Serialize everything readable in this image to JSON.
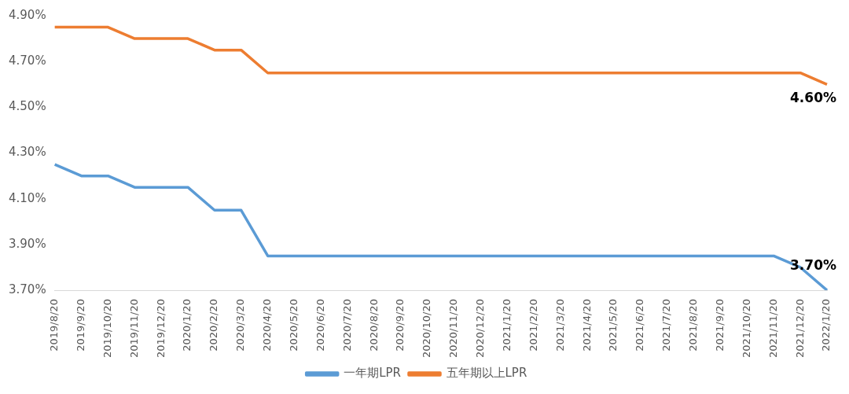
{
  "chart_data": {
    "type": "line",
    "categories": [
      "2019/8/20",
      "2019/9/20",
      "2019/10/20",
      "2019/11/20",
      "2019/12/20",
      "2020/1/20",
      "2020/2/20",
      "2020/3/20",
      "2020/4/20",
      "2020/5/20",
      "2020/6/20",
      "2020/7/20",
      "2020/8/20",
      "2020/9/20",
      "2020/10/20",
      "2020/11/20",
      "2020/12/20",
      "2021/1/20",
      "2021/2/20",
      "2021/3/20",
      "2021/4/20",
      "2021/5/20",
      "2021/6/20",
      "2021/7/20",
      "2021/8/20",
      "2021/9/20",
      "2021/10/20",
      "2021/11/20",
      "2021/12/20",
      "2022/1/20"
    ],
    "series": [
      {
        "name": "一年期LPR",
        "color": "#5b9bd5",
        "values": [
          4.25,
          4.2,
          4.2,
          4.15,
          4.15,
          4.15,
          4.05,
          4.05,
          3.85,
          3.85,
          3.85,
          3.85,
          3.85,
          3.85,
          3.85,
          3.85,
          3.85,
          3.85,
          3.85,
          3.85,
          3.85,
          3.85,
          3.85,
          3.85,
          3.85,
          3.85,
          3.85,
          3.85,
          3.8,
          3.7
        ],
        "value_labels": [
          null,
          null,
          null,
          null,
          null,
          null,
          null,
          null,
          null,
          null,
          null,
          null,
          null,
          null,
          null,
          null,
          null,
          null,
          null,
          null,
          null,
          null,
          null,
          null,
          null,
          null,
          null,
          null,
          null,
          "3.70%"
        ]
      },
      {
        "name": "五年期以上LPR",
        "color": "#ed7d31",
        "values": [
          4.85,
          4.85,
          4.85,
          4.8,
          4.8,
          4.8,
          4.75,
          4.75,
          4.65,
          4.65,
          4.65,
          4.65,
          4.65,
          4.65,
          4.65,
          4.65,
          4.65,
          4.65,
          4.65,
          4.65,
          4.65,
          4.65,
          4.65,
          4.65,
          4.65,
          4.65,
          4.65,
          4.65,
          4.65,
          4.6
        ],
        "value_labels": [
          null,
          null,
          null,
          null,
          null,
          null,
          null,
          null,
          null,
          null,
          null,
          null,
          null,
          null,
          null,
          null,
          null,
          null,
          null,
          null,
          null,
          null,
          null,
          null,
          null,
          null,
          null,
          null,
          null,
          "4.60%"
        ]
      }
    ],
    "ylim": [
      3.7,
      4.9
    ],
    "yticks": [
      {
        "value": 3.7,
        "label": "3.70%"
      },
      {
        "value": 3.9,
        "label": "3.90%"
      },
      {
        "value": 4.1,
        "label": "4.10%"
      },
      {
        "value": 4.3,
        "label": "4.30%"
      },
      {
        "value": 4.5,
        "label": "4.50%"
      },
      {
        "value": 4.7,
        "label": "4.70%"
      },
      {
        "value": 4.9,
        "label": "4.90%"
      }
    ],
    "grid": false,
    "legend": "bottom",
    "marker": "none",
    "line_style": "solid"
  }
}
